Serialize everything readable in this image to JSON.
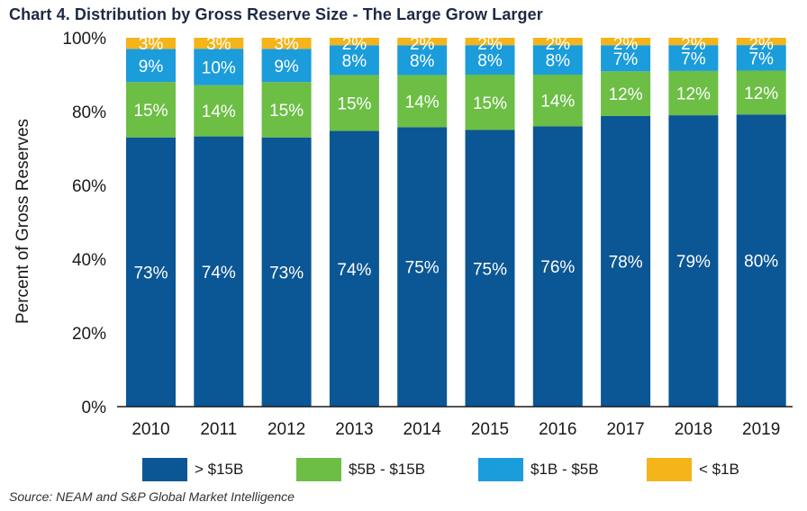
{
  "title": "Chart 4. Distribution by Gross Reserve Size - The Large Grow Larger",
  "source": "Source: NEAM and S&P Global Market Intelligence",
  "chart_data": {
    "type": "bar",
    "stacked": true,
    "categories": [
      "2010",
      "2011",
      "2012",
      "2013",
      "2014",
      "2015",
      "2016",
      "2017",
      "2018",
      "2019"
    ],
    "series": [
      {
        "name": "> $15B",
        "color": "#0b5694",
        "values": [
          73,
          74,
          73,
          74,
          75,
          75,
          76,
          78,
          79,
          80
        ]
      },
      {
        "name": "$5B - $15B",
        "color": "#6cbe45",
        "values": [
          15,
          14,
          15,
          15,
          14,
          15,
          14,
          12,
          12,
          12
        ]
      },
      {
        "name": "$1B - $5B",
        "color": "#1b9cdb",
        "values": [
          9,
          10,
          9,
          8,
          8,
          8,
          8,
          7,
          7,
          7
        ]
      },
      {
        "name": "< $1B",
        "color": "#f4b41a",
        "values": [
          3,
          3,
          3,
          2,
          2,
          2,
          2,
          2,
          2,
          2
        ]
      }
    ],
    "ylabel": "Percent of Gross Reserves",
    "xlabel": "",
    "ylim": [
      0,
      100
    ],
    "yticks": [
      "0%",
      "20%",
      "40%",
      "60%",
      "80%",
      "100%"
    ],
    "value_suffix": "%",
    "legend_position": "bottom"
  }
}
